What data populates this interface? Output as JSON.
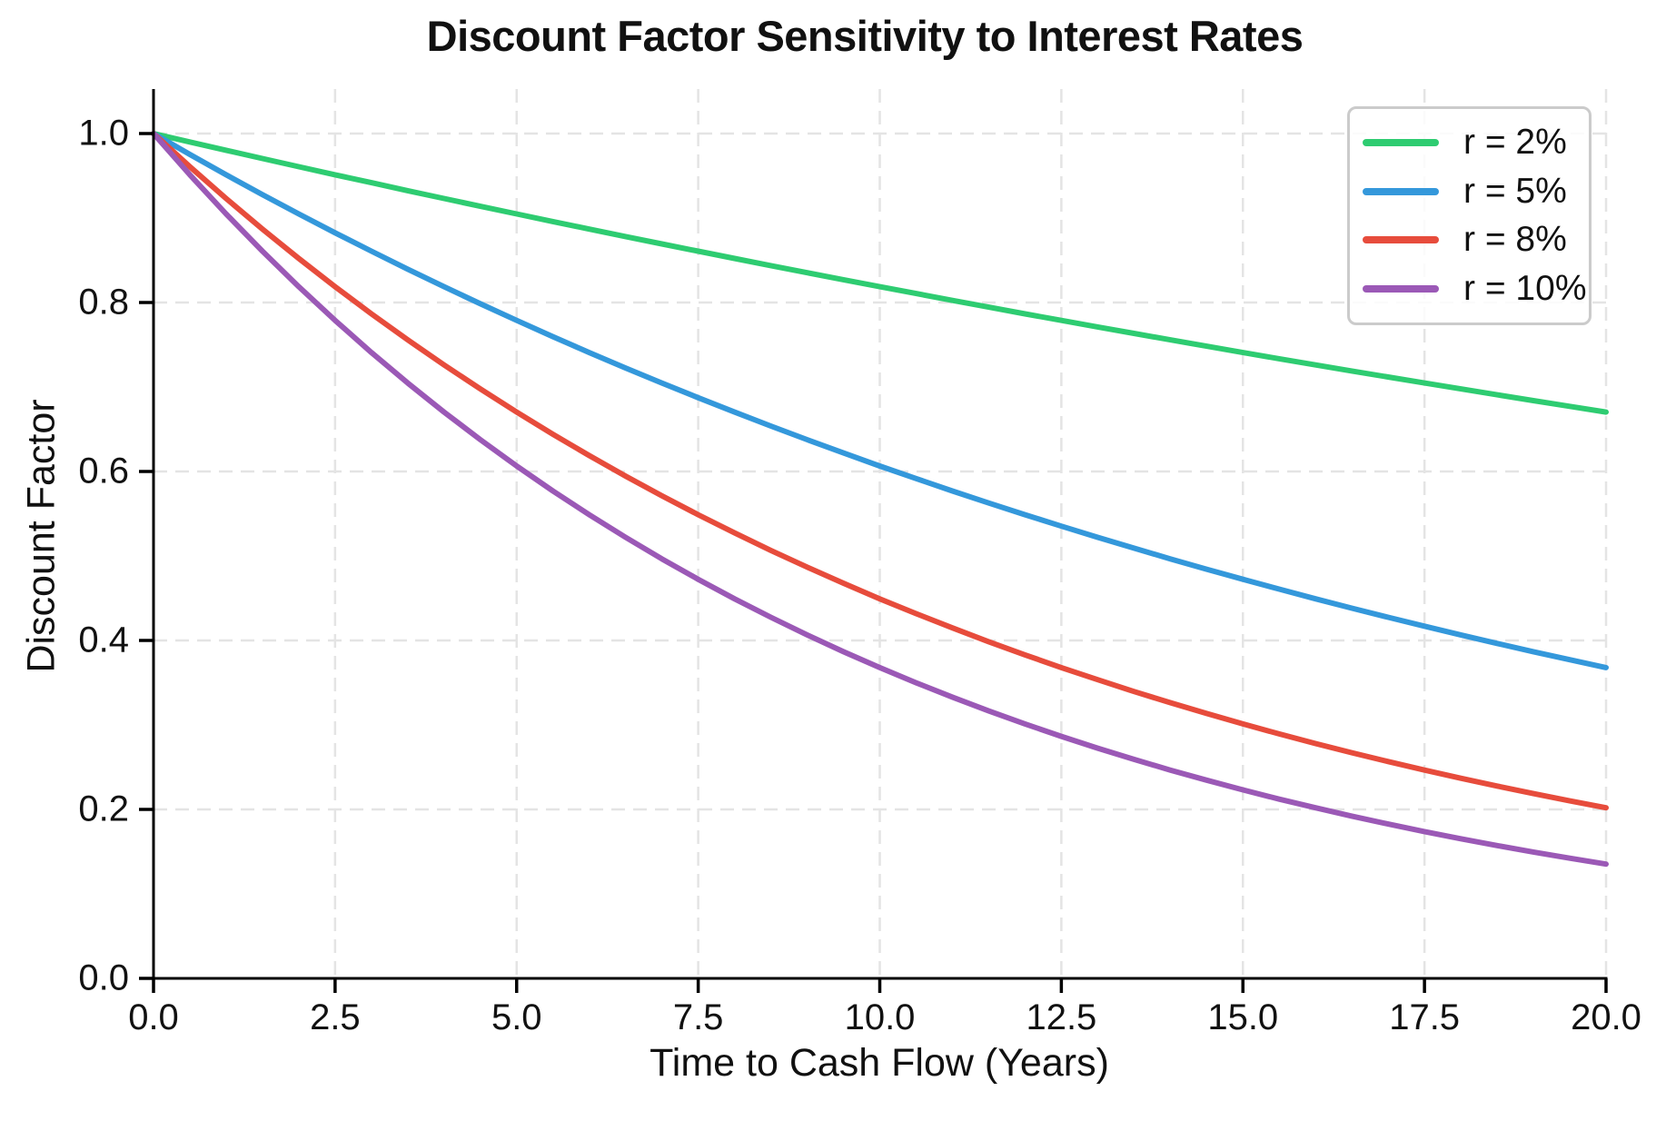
{
  "chart_data": {
    "type": "line",
    "title": "Discount Factor Sensitivity to Interest Rates",
    "xlabel": "Time to Cash Flow (Years)",
    "ylabel": "Discount Factor",
    "xlim": [
      0,
      20
    ],
    "ylim": [
      0,
      1.05
    ],
    "grid": true,
    "grid_style": "dashed",
    "legend_position": "upper right",
    "xticks": {
      "values": [
        0,
        2.5,
        5,
        7.5,
        10,
        12.5,
        15,
        17.5,
        20
      ],
      "labels": [
        "0.0",
        "2.5",
        "5.0",
        "7.5",
        "10.0",
        "12.5",
        "15.0",
        "17.5",
        "20.0"
      ]
    },
    "yticks": {
      "values": [
        0,
        0.2,
        0.4,
        0.6,
        0.8,
        1.0
      ],
      "labels": [
        "0.0",
        "0.2",
        "0.4",
        "0.6",
        "0.8",
        "1.0"
      ]
    },
    "colors": {
      "green": "#2ecc71",
      "blue": "#3498db",
      "red": "#e74c3c",
      "purple": "#9b59b6",
      "grid": "#e4e4e4",
      "spine": "#000000",
      "text": "#111111",
      "legend_border": "#cbcbcb"
    },
    "x_start": 0,
    "x_step": 0.5,
    "series": [
      {
        "name": "r = 2%",
        "rate": 0.02,
        "color": "#2ecc71",
        "values": [
          1.0,
          0.99,
          0.9802,
          0.9704,
          0.9608,
          0.9512,
          0.9418,
          0.9324,
          0.9231,
          0.9139,
          0.9048,
          0.8958,
          0.8869,
          0.8781,
          0.8694,
          0.8607,
          0.8521,
          0.8437,
          0.8353,
          0.827,
          0.8187,
          0.8106,
          0.8025,
          0.7945,
          0.7866,
          0.7788,
          0.7711,
          0.7634,
          0.7558,
          0.7483,
          0.7408,
          0.7334,
          0.7261,
          0.7189,
          0.7118,
          0.7047,
          0.6977,
          0.6907,
          0.6839,
          0.6771,
          0.6703
        ]
      },
      {
        "name": "r = 5%",
        "rate": 0.05,
        "color": "#3498db",
        "values": [
          1.0,
          0.9753,
          0.9512,
          0.9277,
          0.9048,
          0.8825,
          0.8607,
          0.8395,
          0.8187,
          0.7985,
          0.7788,
          0.7596,
          0.7408,
          0.7225,
          0.7047,
          0.6873,
          0.6703,
          0.6538,
          0.6376,
          0.6219,
          0.6065,
          0.5916,
          0.5769,
          0.5627,
          0.5488,
          0.5353,
          0.522,
          0.5092,
          0.4966,
          0.4843,
          0.4724,
          0.4607,
          0.4493,
          0.4382,
          0.4274,
          0.4169,
          0.4066,
          0.3965,
          0.3867,
          0.3772,
          0.3679
        ]
      },
      {
        "name": "r = 8%",
        "rate": 0.08,
        "color": "#e74c3c",
        "values": [
          1.0,
          0.9608,
          0.9231,
          0.8869,
          0.8521,
          0.8187,
          0.7866,
          0.7558,
          0.7261,
          0.6977,
          0.6703,
          0.644,
          0.6188,
          0.5945,
          0.5712,
          0.5488,
          0.5273,
          0.5066,
          0.4868,
          0.4677,
          0.4493,
          0.4317,
          0.4148,
          0.3985,
          0.3829,
          0.3679,
          0.3535,
          0.3396,
          0.3263,
          0.3135,
          0.3012,
          0.2894,
          0.278,
          0.2671,
          0.2567,
          0.2466,
          0.2369,
          0.2276,
          0.2187,
          0.2101,
          0.2019
        ]
      },
      {
        "name": "r = 10%",
        "rate": 0.1,
        "color": "#9b59b6",
        "values": [
          1.0,
          0.9512,
          0.9048,
          0.8607,
          0.8187,
          0.7788,
          0.7408,
          0.7047,
          0.6703,
          0.6376,
          0.6065,
          0.5769,
          0.5488,
          0.522,
          0.4966,
          0.4724,
          0.4493,
          0.4274,
          0.4066,
          0.3867,
          0.3679,
          0.3499,
          0.3329,
          0.3166,
          0.3012,
          0.2865,
          0.2725,
          0.2592,
          0.2466,
          0.2346,
          0.2231,
          0.2122,
          0.2019,
          0.192,
          0.1827,
          0.1738,
          0.1653,
          0.1572,
          0.1496,
          0.1423,
          0.1353
        ]
      }
    ]
  }
}
